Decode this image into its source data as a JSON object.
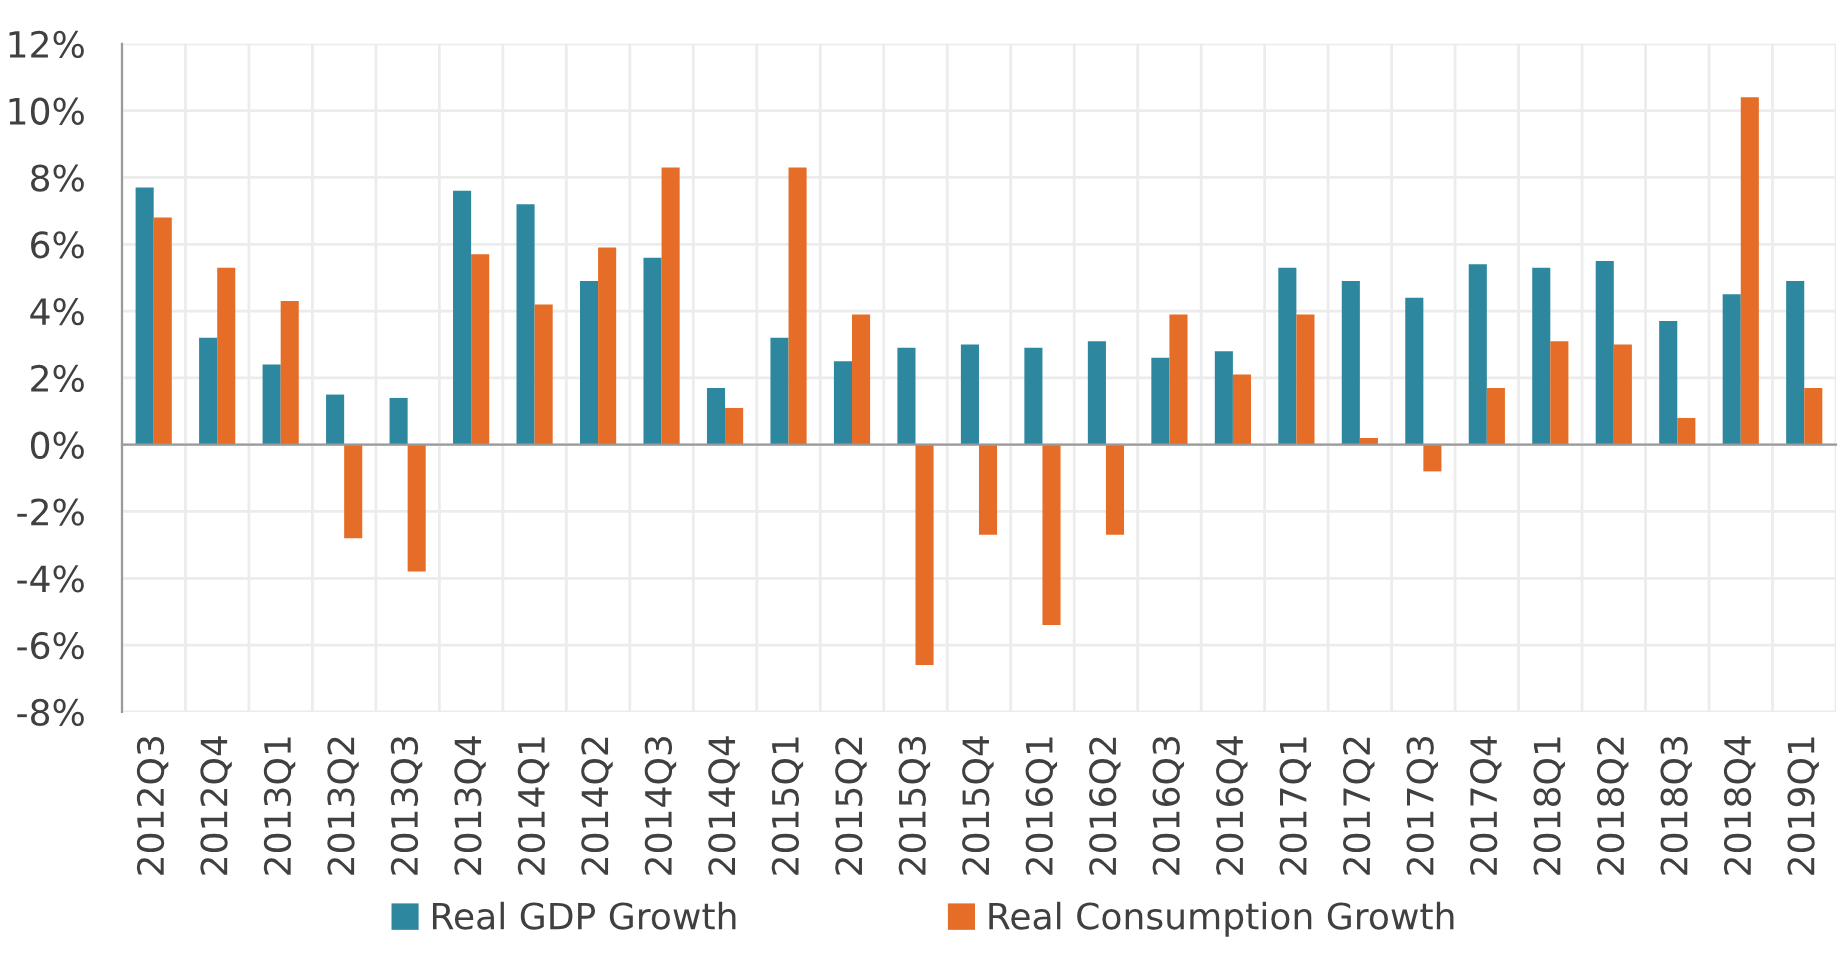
{
  "chart_data": {
    "type": "bar",
    "categories": [
      "2012Q3",
      "2012Q4",
      "2013Q1",
      "2013Q2",
      "2013Q3",
      "2013Q4",
      "2014Q1",
      "2014Q2",
      "2014Q3",
      "2014Q4",
      "2015Q1",
      "2015Q2",
      "2015Q3",
      "2015Q4",
      "2016Q1",
      "2016Q2",
      "2016Q3",
      "2016Q4",
      "2017Q1",
      "2017Q2",
      "2017Q3",
      "2017Q4",
      "2018Q1",
      "2018Q2",
      "2018Q3",
      "2018Q4",
      "2019Q1"
    ],
    "series": [
      {
        "name": "Real GDP Growth",
        "color": "#2d879e",
        "values": [
          7.7,
          3.2,
          2.4,
          1.5,
          1.4,
          7.6,
          7.2,
          4.9,
          5.6,
          1.7,
          3.2,
          2.5,
          2.9,
          3.0,
          2.9,
          3.1,
          2.6,
          2.8,
          5.3,
          4.9,
          4.4,
          5.4,
          5.3,
          5.5,
          3.7,
          4.5,
          4.9
        ]
      },
      {
        "name": "Real Consumption Growth",
        "color": "#e66d27",
        "values": [
          6.8,
          5.3,
          4.3,
          -2.8,
          -3.8,
          5.7,
          4.2,
          5.9,
          8.3,
          1.1,
          8.3,
          3.9,
          -6.6,
          -2.7,
          -5.4,
          -2.7,
          3.9,
          2.1,
          3.9,
          0.2,
          -0.8,
          1.7,
          3.1,
          3.0,
          0.8,
          10.4,
          1.7
        ]
      }
    ],
    "ylim": [
      -8,
      12
    ],
    "yticks": [
      {
        "value": -8,
        "label": "-8%"
      },
      {
        "value": -6,
        "label": "-6%"
      },
      {
        "value": -4,
        "label": "-4%"
      },
      {
        "value": -2,
        "label": "-2%"
      },
      {
        "value": 0,
        "label": "0%"
      },
      {
        "value": 2,
        "label": "2%"
      },
      {
        "value": 4,
        "label": "4%"
      },
      {
        "value": 6,
        "label": "6%"
      },
      {
        "value": 8,
        "label": "8%"
      },
      {
        "value": 10,
        "label": "10%"
      },
      {
        "value": 12,
        "label": "12%"
      }
    ],
    "grid": true,
    "legend": "bottom"
  }
}
